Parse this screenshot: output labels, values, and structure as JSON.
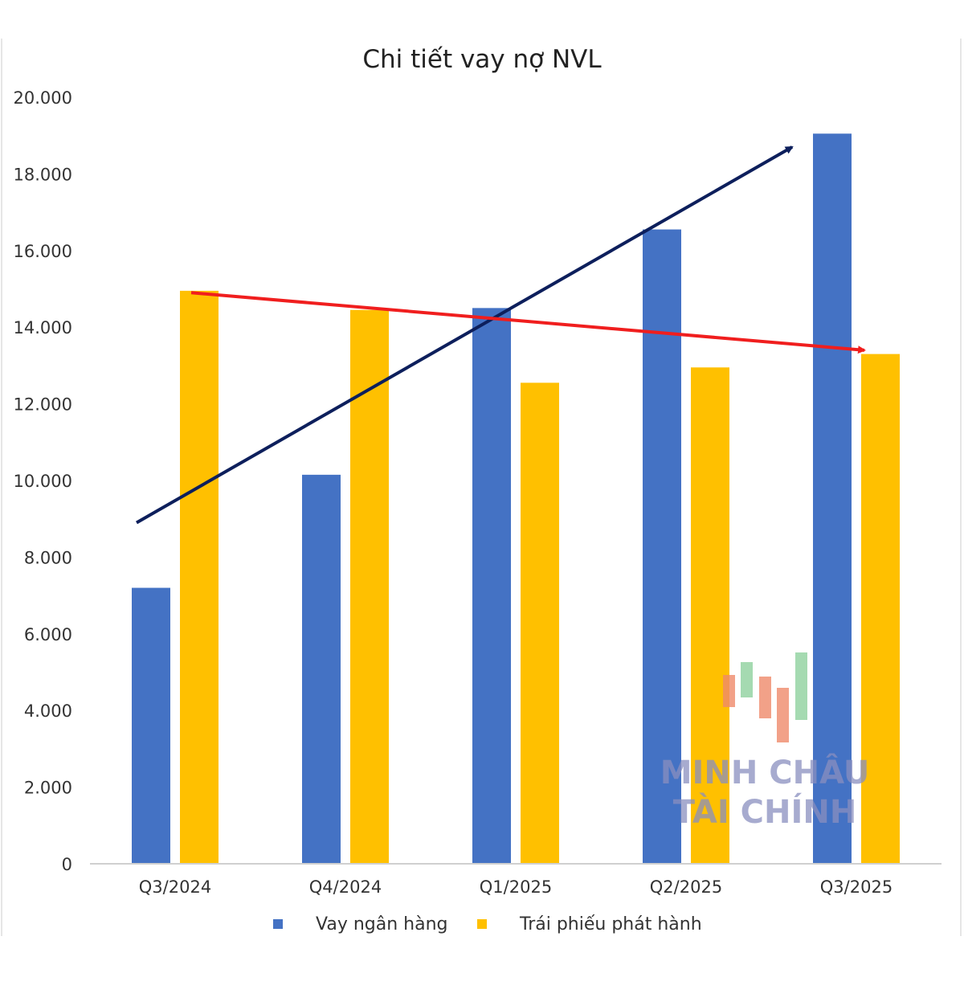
{
  "chart_data": {
    "type": "bar",
    "title": "Chi tiết vay nợ NVL",
    "categories": [
      "Q3/2024",
      "Q4/2024",
      "Q1/2025",
      "Q2/2025",
      "Q3/2025"
    ],
    "series": [
      {
        "name": "Vay ngân hàng",
        "color": "#4472C4",
        "values": [
          7200,
          10150,
          14500,
          16550,
          19050
        ]
      },
      {
        "name": "Trái phiếu phát hành",
        "color": "#FFC000",
        "values": [
          14950,
          14450,
          12550,
          12950,
          13300
        ]
      }
    ],
    "ylim": [
      0,
      20000
    ],
    "yticks": [
      "0",
      "2.000",
      "4.000",
      "6.000",
      "8.000",
      "10.000",
      "12.000",
      "14.000",
      "16.000",
      "18.000",
      "20.000"
    ],
    "grid": false,
    "legend": "bottom",
    "annotations": [
      {
        "type": "trend-arrow",
        "color": "#0D1F5C",
        "from": {
          "x": "Q3/2024",
          "y": 8900
        },
        "to": {
          "x": "Q3/2025",
          "y": 18700
        }
      },
      {
        "type": "trend-arrow",
        "color": "#F01E1E",
        "from": {
          "x": "Q3/2024",
          "y": 14900
        },
        "to": {
          "x": "Q3/2025",
          "y": 13400
        }
      }
    ]
  },
  "watermark": {
    "line1": "MINH CHÂU",
    "line2": "TÀI CHÍNH"
  }
}
